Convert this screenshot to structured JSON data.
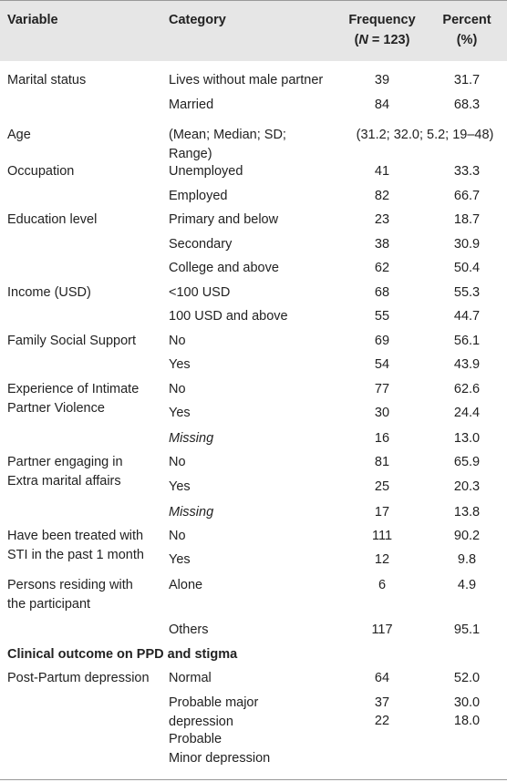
{
  "header": {
    "variable": "Variable",
    "category": "Category",
    "frequency": "Frequency",
    "n_open": "(",
    "n": "N",
    "n_rest": " = 123)",
    "percent": "Percent",
    "percent_unit": "(%)"
  },
  "rows": [
    {
      "variable": "Marital status",
      "category": "Lives without male partner",
      "frequency": "39",
      "percent": "31.7"
    },
    {
      "category": "Married",
      "frequency": "84",
      "percent": "68.3"
    },
    {
      "variable": "Age",
      "category": "(Mean; Median; SD;\nRange)",
      "summary": "(31.2; 32.0; 5.2; 19–48)"
    },
    {
      "variable": "Occupation",
      "category": "Unemployed",
      "frequency": "41",
      "percent": "33.3"
    },
    {
      "category": "Employed",
      "frequency": "82",
      "percent": "66.7"
    },
    {
      "variable": "Education level",
      "category": "Primary and below",
      "frequency": "23",
      "percent": "18.7"
    },
    {
      "category": "Secondary",
      "frequency": "38",
      "percent": "30.9"
    },
    {
      "category": "College and above",
      "frequency": "62",
      "percent": "50.4"
    },
    {
      "variable": "Income (USD)",
      "category": "<100 USD",
      "frequency": "68",
      "percent": "55.3"
    },
    {
      "category": "100 USD and above",
      "frequency": "55",
      "percent": "44.7"
    },
    {
      "variable": "Family Social Support",
      "category": "No",
      "frequency": "69",
      "percent": "56.1"
    },
    {
      "category": "Yes",
      "frequency": "54",
      "percent": "43.9"
    },
    {
      "variable": "Experience of Intimate\nPartner Violence",
      "category": "No",
      "frequency": "77",
      "percent": "62.6"
    },
    {
      "category": "Yes",
      "frequency": "30",
      "percent": "24.4"
    },
    {
      "category": "Missing",
      "category_italic": true,
      "frequency": "16",
      "percent": "13.0"
    },
    {
      "variable": "Partner engaging in\nExtra marital affairs",
      "category": "No",
      "frequency": "81",
      "percent": "65.9"
    },
    {
      "category": "Yes",
      "frequency": "25",
      "percent": "20.3"
    },
    {
      "category": "Missing",
      "category_italic": true,
      "frequency": "17",
      "percent": "13.8"
    },
    {
      "variable": "Have been treated with\nSTI in the past 1 month",
      "category": "No",
      "frequency": "111",
      "percent": "90.2"
    },
    {
      "category": "Yes",
      "frequency": "12",
      "percent": "9.8"
    },
    {
      "variable": "Persons residing with\nthe participant",
      "category": "Alone",
      "frequency": "6",
      "percent": "4.9"
    },
    {
      "category": "Others",
      "frequency": "117",
      "percent": "95.1"
    },
    {
      "variable": "Post-Partum depression",
      "category": "Normal",
      "frequency": "64",
      "percent": "52.0"
    },
    {
      "category": "Probable major\ndepression",
      "frequency": "37",
      "percent": "30.0"
    },
    {
      "category": "Probable\nMinor depression",
      "frequency": "22",
      "percent": "18.0"
    }
  ],
  "section": "Clinical outcome on PPD and stigma"
}
